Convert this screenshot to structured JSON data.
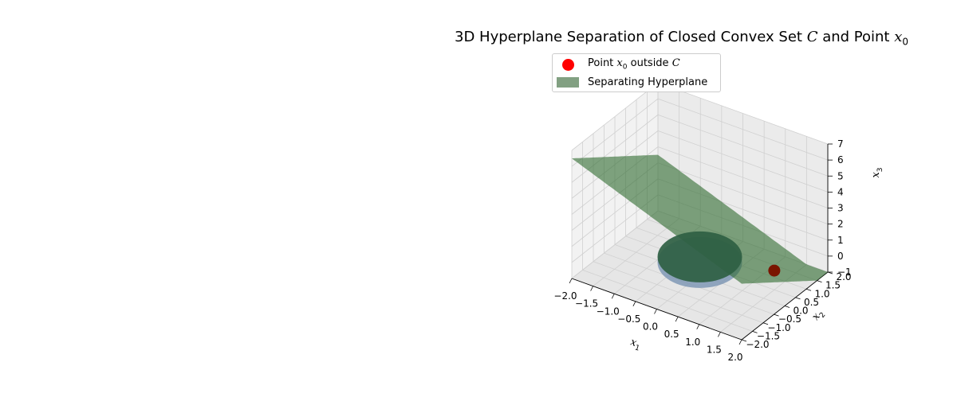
{
  "chart_data": {
    "type": "surface3d",
    "title": "3D Hyperplane Separation of Closed Convex Set C and Point x0",
    "title_parts": {
      "prefix": "3D Hyperplane Separation of Closed Convex Set ",
      "set_symbol": "C",
      "middle": " and Point ",
      "point_symbol": "x",
      "point_subscript": "0"
    },
    "xlabel": "x1",
    "ylabel": "x2",
    "zlabel": "x3",
    "xlabel_parts": {
      "symbol": "x",
      "sub": "1"
    },
    "ylabel_parts": {
      "symbol": "x",
      "sub": "2"
    },
    "zlabel_parts": {
      "symbol": "x",
      "sub": "3"
    },
    "xlim": [
      -2.0,
      2.0
    ],
    "ylim": [
      -2.0,
      2.0
    ],
    "zlim": [
      -1,
      7
    ],
    "x_ticks": [
      "−2.0",
      "−1.5",
      "−1.0",
      "−0.5",
      "0.0",
      "0.5",
      "1.0",
      "1.5",
      "2.0"
    ],
    "y_ticks": [
      "−2.0",
      "−1.5",
      "−1.0",
      "−0.5",
      "0.0",
      "0.5",
      "1.0",
      "1.5",
      "2.0"
    ],
    "z_ticks": [
      "−1",
      "0",
      "1",
      "2",
      "3",
      "4",
      "5",
      "6",
      "7"
    ],
    "grid": true,
    "legend_position": "top-left",
    "series": [
      {
        "name": "Point x0 outside C",
        "label_parts": {
          "prefix": "Point ",
          "symbol": "x",
          "sub": "0",
          "middle": " outside ",
          "set": "C"
        },
        "kind": "scatter",
        "point": {
          "x": 1.5,
          "y": 0.5,
          "z": 0.2
        },
        "color": "#ff0000"
      },
      {
        "name": "Separating Hyperplane",
        "label_parts": {
          "text": "Separating Hyperplane"
        },
        "kind": "surface",
        "equation": "x1 + x2 + x3 = 2.5",
        "color": "#2e6b2e",
        "alpha": 0.6
      },
      {
        "name": "Closed convex set C",
        "kind": "ellipsoid",
        "center": [
          0,
          0,
          0
        ],
        "radius": 1,
        "color": "#7f98b5"
      }
    ]
  }
}
